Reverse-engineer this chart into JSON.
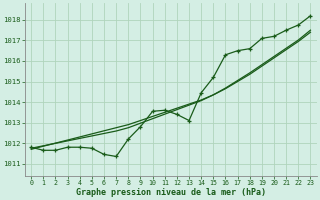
{
  "x": [
    0,
    1,
    2,
    3,
    4,
    5,
    6,
    7,
    8,
    9,
    10,
    11,
    12,
    13,
    14,
    15,
    16,
    17,
    18,
    19,
    20,
    21,
    22,
    23
  ],
  "y_line": [
    1011.8,
    1011.65,
    1011.65,
    1011.8,
    1011.8,
    1011.75,
    1011.45,
    1011.35,
    1012.2,
    1012.8,
    1013.55,
    1013.6,
    1013.4,
    1013.1,
    1014.45,
    1015.2,
    1016.3,
    1016.5,
    1016.6,
    1017.1,
    1017.2,
    1017.5,
    1017.75,
    1018.2
  ],
  "y_reg1": [
    1011.7,
    1011.85,
    1012.0,
    1012.15,
    1012.3,
    1012.45,
    1012.6,
    1012.75,
    1012.9,
    1013.1,
    1013.3,
    1013.5,
    1013.7,
    1013.9,
    1014.1,
    1014.35,
    1014.65,
    1015.0,
    1015.35,
    1015.75,
    1016.15,
    1016.55,
    1016.95,
    1017.4
  ],
  "y_reg2": [
    1011.75,
    1011.87,
    1011.99,
    1012.11,
    1012.23,
    1012.35,
    1012.47,
    1012.59,
    1012.75,
    1012.97,
    1013.19,
    1013.41,
    1013.63,
    1013.85,
    1014.07,
    1014.35,
    1014.68,
    1015.05,
    1015.42,
    1015.82,
    1016.22,
    1016.62,
    1017.02,
    1017.5
  ],
  "bg_color": "#d4eee4",
  "grid_color": "#b0d4bc",
  "line_color": "#1a5c1a",
  "ylabel_ticks": [
    1011,
    1012,
    1013,
    1014,
    1015,
    1016,
    1017,
    1018
  ],
  "xlabel": "Graphe pression niveau de la mer (hPa)",
  "ylim": [
    1010.4,
    1018.8
  ],
  "xlim": [
    -0.5,
    23.5
  ]
}
